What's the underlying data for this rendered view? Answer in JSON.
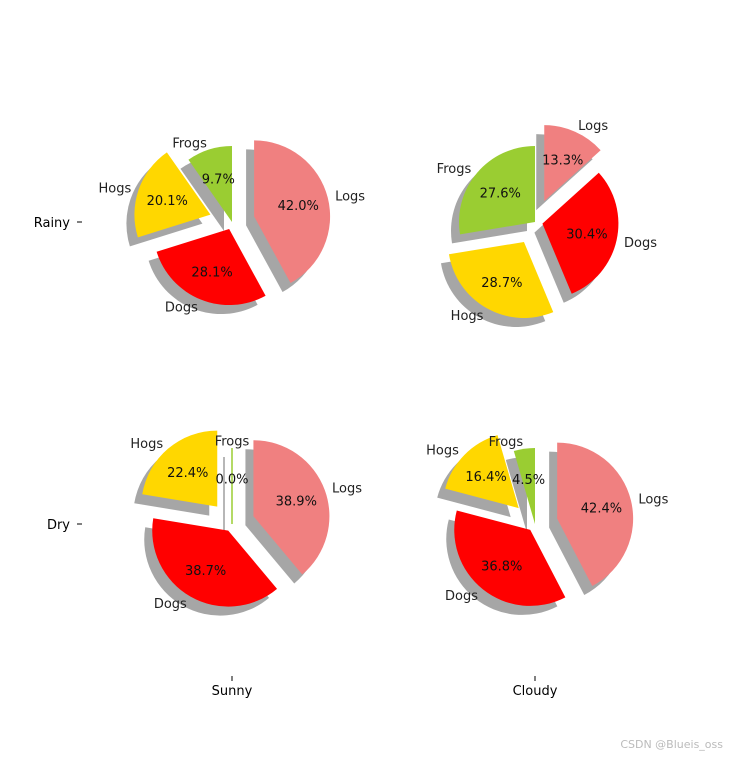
{
  "chart_data": {
    "type": "pie",
    "row_labels": [
      "Rainy",
      "Dry"
    ],
    "column_labels": [
      "Sunny",
      "Cloudy"
    ],
    "categories": [
      "Logs",
      "Dogs",
      "Hogs",
      "Frogs"
    ],
    "colors": {
      "Logs": "#f08080",
      "Dogs": "#ff0000",
      "Hogs": "#ffd700",
      "Frogs": "#9acd32",
      "shadow": "#888888"
    },
    "pies": [
      {
        "row": "Rainy",
        "column": "Sunny",
        "values": [
          42.0,
          28.1,
          20.1,
          9.7
        ],
        "labels": [
          "42.0%",
          "28.1%",
          "20.1%",
          "9.7%"
        ]
      },
      {
        "row": "Rainy",
        "column": "Cloudy",
        "values": [
          13.3,
          30.4,
          28.7,
          27.6
        ],
        "labels": [
          "13.3%",
          "30.4%",
          "28.7%",
          "27.6%"
        ]
      },
      {
        "row": "Dry",
        "column": "Sunny",
        "values": [
          38.9,
          38.7,
          22.4,
          0.0
        ],
        "labels": [
          "38.9%",
          "38.7%",
          "22.4%",
          "0.0%"
        ]
      },
      {
        "row": "Dry",
        "column": "Cloudy",
        "values": [
          42.4,
          36.8,
          16.4,
          4.5
        ],
        "labels": [
          "42.4%",
          "36.8%",
          "16.4%",
          "4.5%"
        ]
      }
    ],
    "start_angle": 90,
    "counterclock": false,
    "explode": [
      0.3,
      0.1,
      0.3,
      0.0
    ],
    "shadow": true
  },
  "watermark": "CSDN @Blueis_oss"
}
